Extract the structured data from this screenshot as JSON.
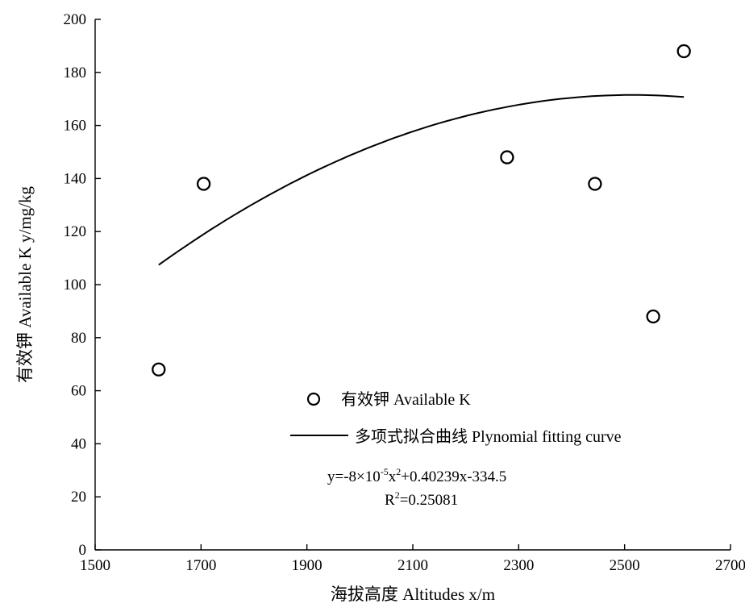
{
  "chart_data": {
    "type": "scatter",
    "xlabel": "海拔高度 Altitudes  x/m",
    "ylabel": "有效钾 Available K y/mg/kg",
    "xlim": [
      1500,
      2700
    ],
    "ylim": [
      0,
      200
    ],
    "x_ticks": [
      "1500",
      "1700",
      "1900",
      "2100",
      "2300",
      "2500",
      "2700"
    ],
    "y_ticks": [
      "0",
      "20",
      "40",
      "60",
      "80",
      "100",
      "120",
      "140",
      "160",
      "180",
      "200"
    ],
    "series": [
      {
        "name": "有效钾 Available K",
        "marker": "open-circle",
        "points": [
          {
            "x": 1620,
            "y": 68
          },
          {
            "x": 1705,
            "y": 138
          },
          {
            "x": 2278,
            "y": 148
          },
          {
            "x": 2444,
            "y": 138
          },
          {
            "x": 2554,
            "y": 88
          },
          {
            "x": 2612,
            "y": 188
          }
        ]
      },
      {
        "name": "多项式拟合曲线  Plynomial fitting curve",
        "type": "line",
        "fit": {
          "a": -8e-05,
          "b": 0.40239,
          "c": -334.5,
          "x_range": [
            1620,
            2612
          ]
        }
      }
    ],
    "equation": {
      "prefix": "y=-8×10",
      "exp1": "-5",
      "mid": "x",
      "exp2": "2",
      "suffix": "+0.40239x-334.5",
      "r2_prefix": "R",
      "r2_exp": "2",
      "r2_value": "=0.25081"
    },
    "legend_position": "lower-center",
    "grid": false,
    "line_color": "#000000",
    "marker_color": "#000000"
  }
}
